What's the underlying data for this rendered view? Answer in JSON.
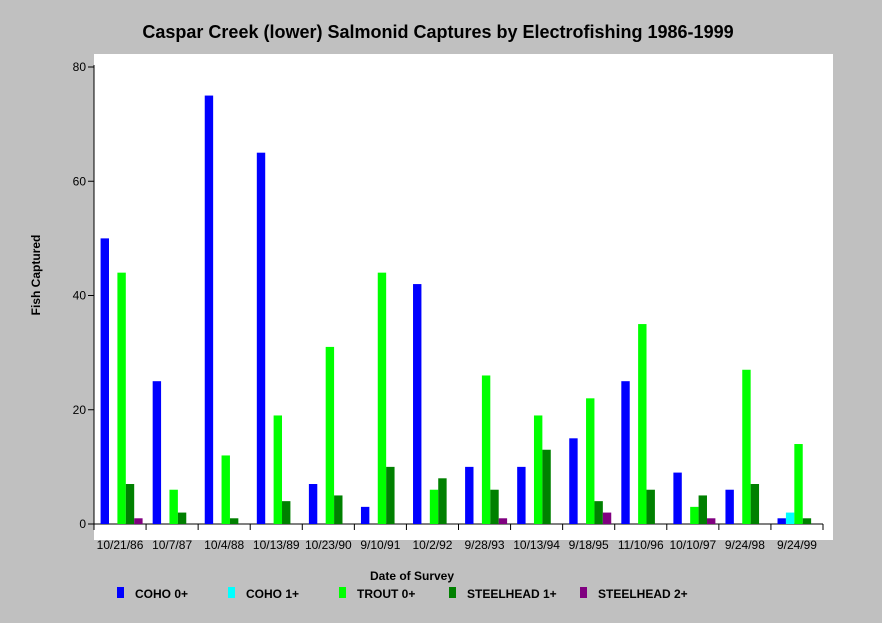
{
  "chart_data": {
    "type": "bar",
    "title": "Caspar Creek (lower) Salmonid Captures by Electrofishing 1986-1999",
    "xlabel": "Date of Survey",
    "ylabel": "Fish Captured",
    "ylim": [
      0,
      80
    ],
    "yticks": [
      0,
      20,
      40,
      60,
      80
    ],
    "grid": false,
    "legend_position": "bottom",
    "categories": [
      "10/21/86",
      "10/7/87",
      "10/4/88",
      "10/13/89",
      "10/23/90",
      "9/10/91",
      "10/2/92",
      "9/28/93",
      "10/13/94",
      "9/18/95",
      "11/10/96",
      "10/10/97",
      "9/24/98",
      "9/24/99"
    ],
    "series": [
      {
        "name": "COHO 0+",
        "color": "#0000ff",
        "values": [
          50,
          25,
          75,
          65,
          7,
          3,
          42,
          10,
          10,
          15,
          25,
          9,
          6,
          1
        ]
      },
      {
        "name": "COHO 1+",
        "color": "#00ffff",
        "values": [
          0,
          0,
          0,
          0,
          0,
          0,
          0,
          0,
          0,
          0,
          0,
          0,
          0,
          2
        ]
      },
      {
        "name": "TROUT 0+",
        "color": "#00ff00",
        "values": [
          44,
          6,
          12,
          19,
          31,
          44,
          6,
          26,
          19,
          22,
          35,
          3,
          27,
          14
        ]
      },
      {
        "name": "STEELHEAD 1+",
        "color": "#008000",
        "values": [
          7,
          2,
          1,
          4,
          5,
          10,
          8,
          6,
          13,
          4,
          6,
          5,
          7,
          1
        ]
      },
      {
        "name": "STEELHEAD 2+",
        "color": "#800080",
        "values": [
          1,
          0,
          0,
          0,
          0,
          0,
          0,
          1,
          0,
          2,
          0,
          1,
          0,
          0
        ]
      }
    ]
  }
}
